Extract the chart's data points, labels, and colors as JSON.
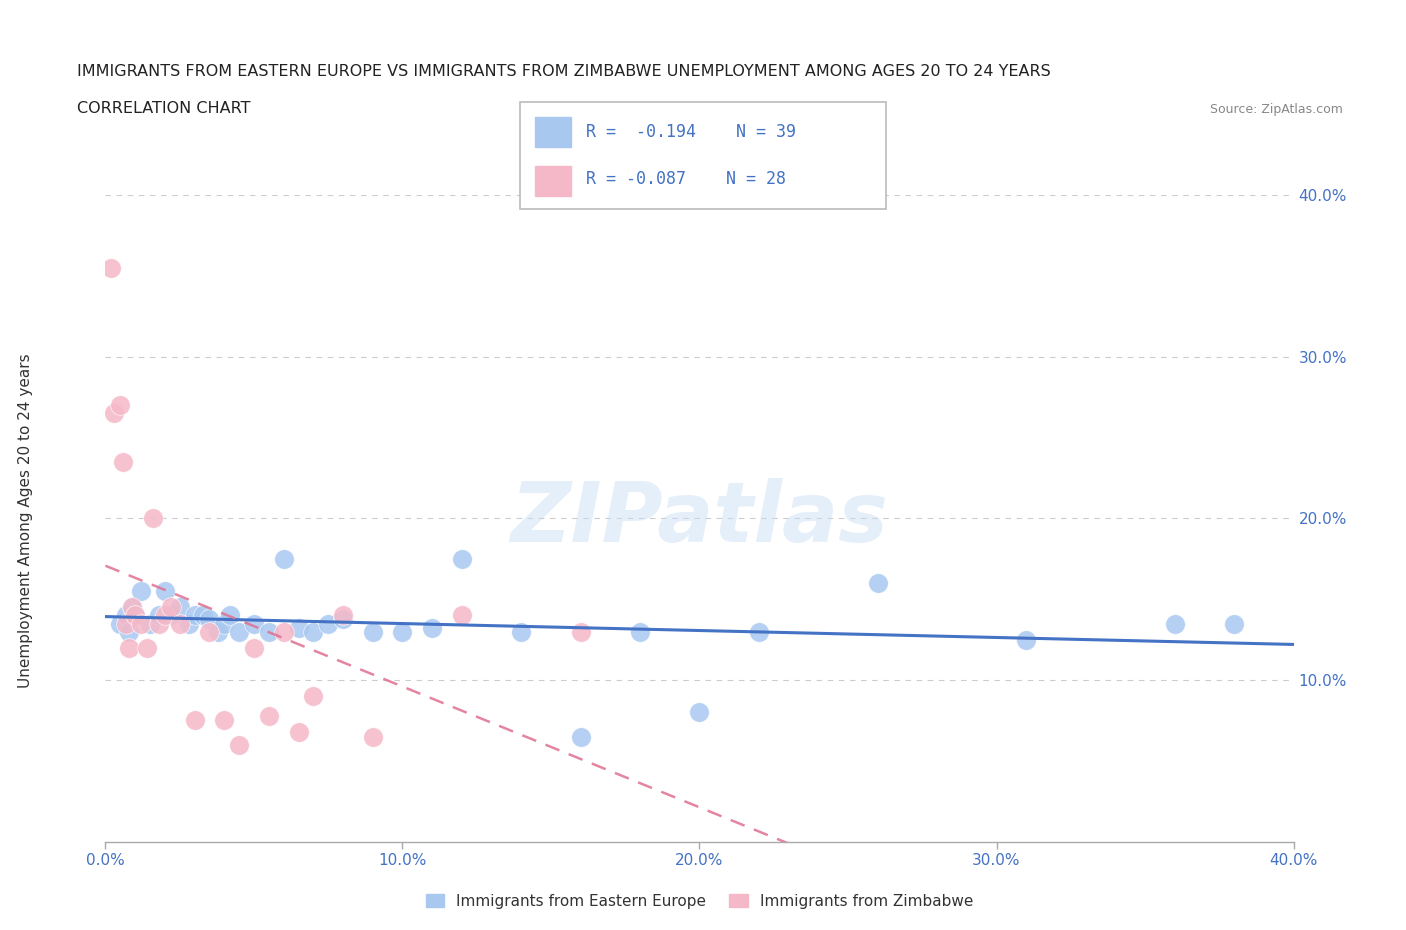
{
  "title_line1": "IMMIGRANTS FROM EASTERN EUROPE VS IMMIGRANTS FROM ZIMBABWE UNEMPLOYMENT AMONG AGES 20 TO 24 YEARS",
  "title_line2": "CORRELATION CHART",
  "source_text": "Source: ZipAtlas.com",
  "ylabel": "Unemployment Among Ages 20 to 24 years",
  "xmin": 0.0,
  "xmax": 0.4,
  "ymin": 0.0,
  "ymax": 0.4,
  "x_ticks": [
    0.0,
    0.1,
    0.2,
    0.3,
    0.4
  ],
  "x_tick_labels": [
    "0.0%",
    "10.0%",
    "20.0%",
    "30.0%",
    "40.0%"
  ],
  "y_ticks_right": [
    0.1,
    0.2,
    0.3,
    0.4
  ],
  "y_tick_labels_right": [
    "10.0%",
    "20.0%",
    "30.0%",
    "40.0%"
  ],
  "grid_color": "#cccccc",
  "blue_color": "#a8c8f0",
  "pink_color": "#f5b8c8",
  "blue_line_color": "#4472c4",
  "pink_line_color": "#e07090",
  "watermark": "ZIPatlas",
  "legend_R1": "R =  -0.194",
  "legend_N1": "N = 39",
  "legend_R2": "R = -0.087",
  "legend_N2": "N = 28",
  "legend_label1": "Immigrants from Eastern Europe",
  "legend_label2": "Immigrants from Zimbabwe",
  "blue_x": [
    0.005,
    0.007,
    0.008,
    0.009,
    0.01,
    0.012,
    0.015,
    0.018,
    0.02,
    0.022,
    0.025,
    0.028,
    0.03,
    0.033,
    0.035,
    0.038,
    0.04,
    0.042,
    0.045,
    0.05,
    0.055,
    0.06,
    0.065,
    0.07,
    0.075,
    0.08,
    0.09,
    0.1,
    0.11,
    0.12,
    0.14,
    0.16,
    0.18,
    0.2,
    0.22,
    0.26,
    0.31,
    0.36,
    0.38
  ],
  "blue_y": [
    0.135,
    0.14,
    0.13,
    0.145,
    0.14,
    0.155,
    0.135,
    0.14,
    0.155,
    0.14,
    0.145,
    0.135,
    0.14,
    0.14,
    0.138,
    0.13,
    0.135,
    0.14,
    0.13,
    0.135,
    0.13,
    0.175,
    0.132,
    0.13,
    0.135,
    0.138,
    0.13,
    0.13,
    0.132,
    0.175,
    0.13,
    0.065,
    0.13,
    0.08,
    0.13,
    0.16,
    0.125,
    0.135,
    0.135
  ],
  "pink_x": [
    0.002,
    0.003,
    0.005,
    0.006,
    0.007,
    0.008,
    0.009,
    0.01,
    0.012,
    0.014,
    0.016,
    0.018,
    0.02,
    0.022,
    0.025,
    0.03,
    0.035,
    0.04,
    0.045,
    0.05,
    0.055,
    0.06,
    0.065,
    0.07,
    0.08,
    0.09,
    0.12,
    0.16
  ],
  "pink_y": [
    0.355,
    0.265,
    0.27,
    0.235,
    0.135,
    0.12,
    0.145,
    0.14,
    0.135,
    0.12,
    0.2,
    0.135,
    0.14,
    0.145,
    0.135,
    0.075,
    0.13,
    0.075,
    0.06,
    0.12,
    0.078,
    0.13,
    0.068,
    0.09,
    0.14,
    0.065,
    0.14,
    0.13
  ]
}
